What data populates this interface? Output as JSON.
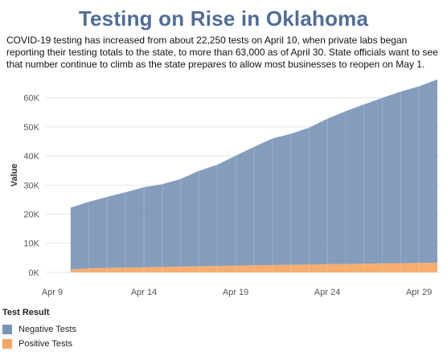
{
  "title": "Testing on Rise in Oklahoma",
  "subtitle": "COVID-19 testing has increased from about 22,250 tests on April 10, when private labs began reporting their testing totals to the state, to more than 63,000 as of April 30. State officials want to see that number continue to climb as the state prepares to allow most businesses to reopen on May 1.",
  "legend": {
    "title": "Test Result",
    "items": [
      {
        "label": "Negative Tests",
        "color": "#7a95b7"
      },
      {
        "label": "Positive Tests",
        "color": "#f5a664"
      }
    ]
  },
  "chart_data": {
    "type": "area",
    "stacked": true,
    "x": [
      "Apr 10",
      "Apr 11",
      "Apr 12",
      "Apr 13",
      "Apr 14",
      "Apr 15",
      "Apr 16",
      "Apr 17",
      "Apr 18",
      "Apr 19",
      "Apr 20",
      "Apr 21",
      "Apr 22",
      "Apr 23",
      "Apr 24",
      "Apr 25",
      "Apr 26",
      "Apr 27",
      "Apr 28",
      "Apr 29",
      "Apr 30"
    ],
    "series": [
      {
        "name": "Negative Tests",
        "color": "#7a95b7",
        "values": [
          21250,
          22800,
          24400,
          25900,
          27500,
          28400,
          30100,
          32800,
          34800,
          37800,
          40700,
          43500,
          45000,
          47000,
          50000,
          52500,
          54700,
          56900,
          59000,
          60700,
          63000
        ]
      },
      {
        "name": "Positive Tests",
        "color": "#f5a664",
        "values": [
          1000,
          1450,
          1550,
          1650,
          1750,
          1900,
          2000,
          2100,
          2200,
          2300,
          2400,
          2500,
          2600,
          2700,
          2800,
          2900,
          3000,
          3100,
          3150,
          3250,
          3300
        ]
      }
    ],
    "xticks": [
      "Apr 9",
      "Apr 14",
      "Apr 19",
      "Apr 24",
      "Apr 29"
    ],
    "yticks": [
      {
        "value": 0,
        "label": "0K"
      },
      {
        "value": 10000,
        "label": "10K"
      },
      {
        "value": 20000,
        "label": "20K"
      },
      {
        "value": 30000,
        "label": "30K"
      },
      {
        "value": 40000,
        "label": "40K"
      },
      {
        "value": 50000,
        "label": "50K"
      },
      {
        "value": 60000,
        "label": "60K"
      }
    ],
    "xlim": [
      "Apr 9",
      "Apr 30"
    ],
    "ylim": [
      -2500,
      66000
    ],
    "ylabel": "Value",
    "xlabel": "",
    "grid": true,
    "legend_position": "bottom-left"
  }
}
